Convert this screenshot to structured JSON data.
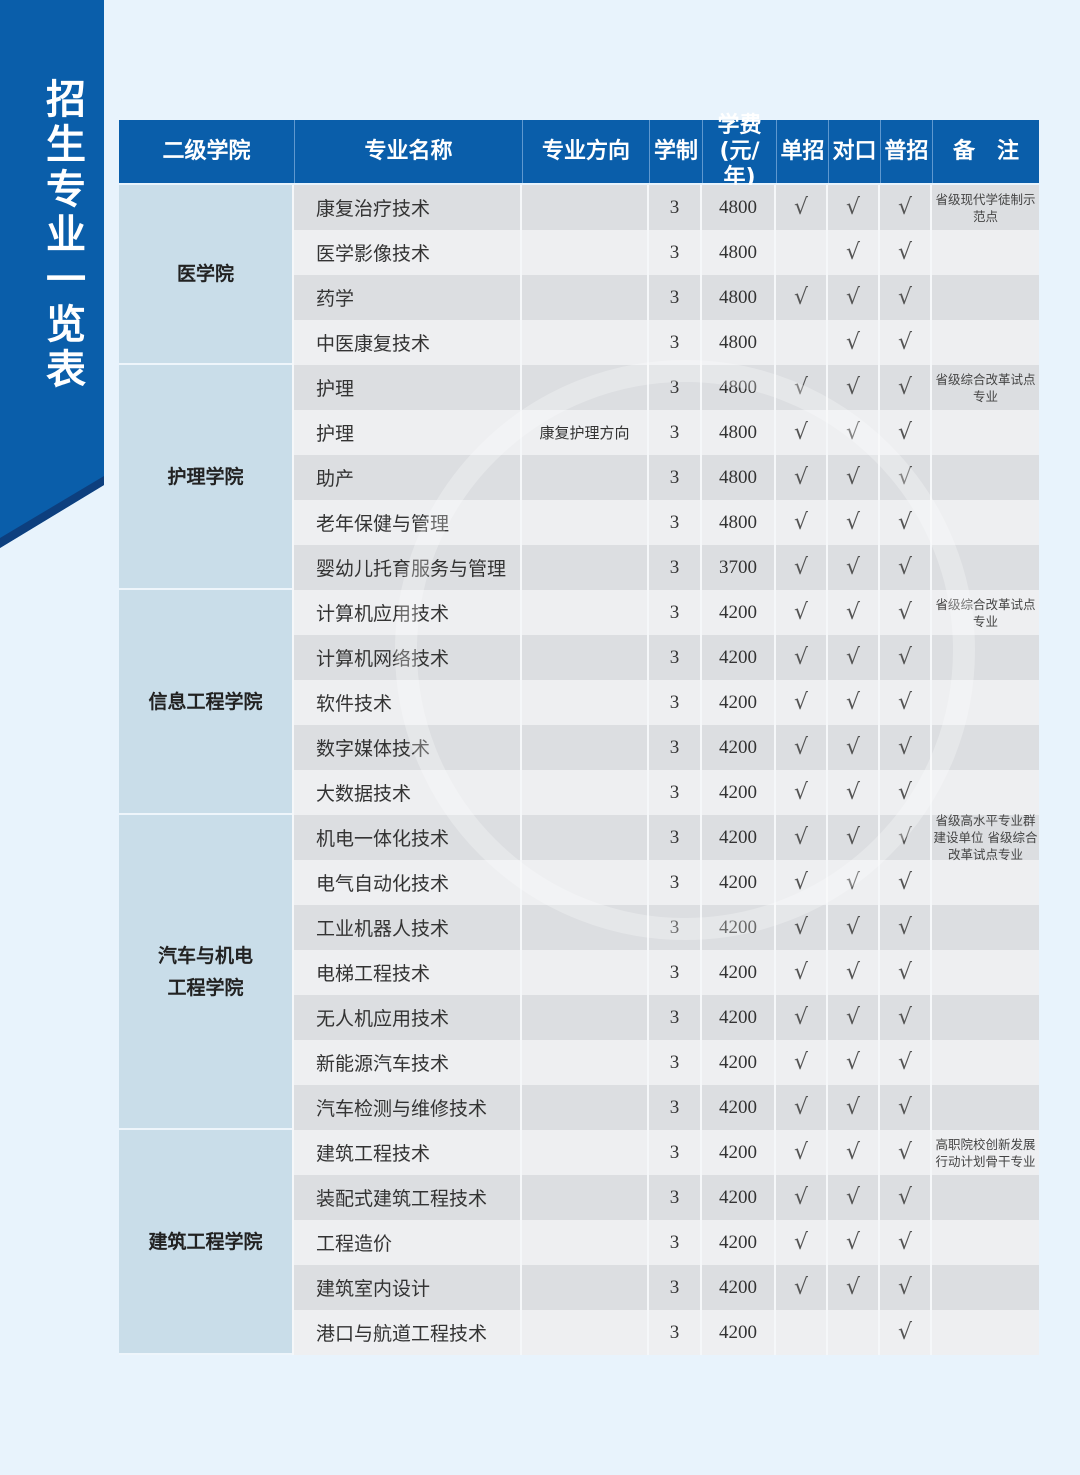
{
  "title": "招生专业一览表",
  "headers": [
    "二级学院",
    "专业名称",
    "专业方向",
    "学制",
    "学费(元/年)",
    "单招",
    "对口",
    "普招",
    "备　注"
  ],
  "check_mark": "√",
  "groups": [
    {
      "name": "医学院",
      "rows": 4
    },
    {
      "name": "护理学院",
      "rows": 5
    },
    {
      "name": "信息工程学院",
      "rows": 5
    },
    {
      "name": "汽车与机电\n工程学院",
      "rows": 7
    },
    {
      "name": "建筑工程学院",
      "rows": 5
    }
  ],
  "rows": [
    {
      "major": "康复治疗技术",
      "direction": "",
      "years": "3",
      "fee": "4800",
      "dz": true,
      "dk": true,
      "pz": true,
      "note": "省级现代学徒制示范点"
    },
    {
      "major": "医学影像技术",
      "direction": "",
      "years": "3",
      "fee": "4800",
      "dz": false,
      "dk": true,
      "pz": true,
      "note": ""
    },
    {
      "major": "药学",
      "direction": "",
      "years": "3",
      "fee": "4800",
      "dz": true,
      "dk": true,
      "pz": true,
      "note": ""
    },
    {
      "major": "中医康复技术",
      "direction": "",
      "years": "3",
      "fee": "4800",
      "dz": false,
      "dk": true,
      "pz": true,
      "note": ""
    },
    {
      "major": "护理",
      "direction": "",
      "years": "3",
      "fee": "4800",
      "dz": true,
      "dk": true,
      "pz": true,
      "note": "省级综合改革试点专业"
    },
    {
      "major": "护理",
      "direction": "康复护理方向",
      "years": "3",
      "fee": "4800",
      "dz": true,
      "dk": true,
      "pz": true,
      "note": ""
    },
    {
      "major": "助产",
      "direction": "",
      "years": "3",
      "fee": "4800",
      "dz": true,
      "dk": true,
      "pz": true,
      "note": ""
    },
    {
      "major": "老年保健与管理",
      "direction": "",
      "years": "3",
      "fee": "4800",
      "dz": true,
      "dk": true,
      "pz": true,
      "note": ""
    },
    {
      "major": "婴幼儿托育服务与管理",
      "direction": "",
      "years": "3",
      "fee": "3700",
      "dz": true,
      "dk": true,
      "pz": true,
      "note": ""
    },
    {
      "major": "计算机应用技术",
      "direction": "",
      "years": "3",
      "fee": "4200",
      "dz": true,
      "dk": true,
      "pz": true,
      "note": "省级综合改革试点专业"
    },
    {
      "major": "计算机网络技术",
      "direction": "",
      "years": "3",
      "fee": "4200",
      "dz": true,
      "dk": true,
      "pz": true,
      "note": ""
    },
    {
      "major": "软件技术",
      "direction": "",
      "years": "3",
      "fee": "4200",
      "dz": true,
      "dk": true,
      "pz": true,
      "note": ""
    },
    {
      "major": "数字媒体技术",
      "direction": "",
      "years": "3",
      "fee": "4200",
      "dz": true,
      "dk": true,
      "pz": true,
      "note": ""
    },
    {
      "major": "大数据技术",
      "direction": "",
      "years": "3",
      "fee": "4200",
      "dz": true,
      "dk": true,
      "pz": true,
      "note": ""
    },
    {
      "major": "机电一体化技术",
      "direction": "",
      "years": "3",
      "fee": "4200",
      "dz": true,
      "dk": true,
      "pz": true,
      "note": "省级高水平专业群建设单位 省级综合改革试点专业"
    },
    {
      "major": "电气自动化技术",
      "direction": "",
      "years": "3",
      "fee": "4200",
      "dz": true,
      "dk": true,
      "pz": true,
      "note": ""
    },
    {
      "major": "工业机器人技术",
      "direction": "",
      "years": "3",
      "fee": "4200",
      "dz": true,
      "dk": true,
      "pz": true,
      "note": ""
    },
    {
      "major": "电梯工程技术",
      "direction": "",
      "years": "3",
      "fee": "4200",
      "dz": true,
      "dk": true,
      "pz": true,
      "note": ""
    },
    {
      "major": "无人机应用技术",
      "direction": "",
      "years": "3",
      "fee": "4200",
      "dz": true,
      "dk": true,
      "pz": true,
      "note": ""
    },
    {
      "major": "新能源汽车技术",
      "direction": "",
      "years": "3",
      "fee": "4200",
      "dz": true,
      "dk": true,
      "pz": true,
      "note": ""
    },
    {
      "major": "汽车检测与维修技术",
      "direction": "",
      "years": "3",
      "fee": "4200",
      "dz": true,
      "dk": true,
      "pz": true,
      "note": ""
    },
    {
      "major": "建筑工程技术",
      "direction": "",
      "years": "3",
      "fee": "4200",
      "dz": true,
      "dk": true,
      "pz": true,
      "note": "高职院校创新发展 行动计划骨干专业"
    },
    {
      "major": "装配式建筑工程技术",
      "direction": "",
      "years": "3",
      "fee": "4200",
      "dz": true,
      "dk": true,
      "pz": true,
      "note": ""
    },
    {
      "major": "工程造价",
      "direction": "",
      "years": "3",
      "fee": "4200",
      "dz": true,
      "dk": true,
      "pz": true,
      "note": ""
    },
    {
      "major": "建筑室内设计",
      "direction": "",
      "years": "3",
      "fee": "4200",
      "dz": true,
      "dk": true,
      "pz": true,
      "note": ""
    },
    {
      "major": "港口与航道工程技术",
      "direction": "",
      "years": "3",
      "fee": "4200",
      "dz": false,
      "dk": false,
      "pz": true,
      "note": ""
    }
  ],
  "colors": {
    "banner": "#0a5eaa",
    "header": "#0a5eaa",
    "group_cell": "#c9dde9",
    "background": "#e8f3fc"
  }
}
